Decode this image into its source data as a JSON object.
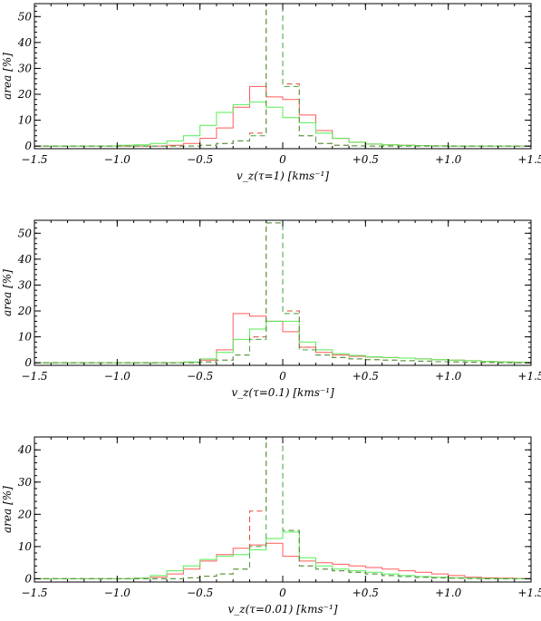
{
  "colors": {
    "red": "#ff5a5a",
    "green": "#55ee55",
    "redDash": "#dd4b3b",
    "greenDash": "#3fa33f"
  },
  "chart_data": [
    {
      "type": "line",
      "xlabel": "v_z(τ=1) [kms⁻¹]",
      "ylabel": "area [%]",
      "xlim": [
        -1.5,
        1.5
      ],
      "ylim": [
        -1,
        55
      ],
      "xticks": [
        -1.5,
        -1.0,
        -0.5,
        0,
        0.5,
        1.0,
        1.5
      ],
      "xtick_labels": [
        "−1.5",
        "−1.0",
        "−0.5",
        "0",
        "+0.5",
        "+1.0",
        "+1.5"
      ],
      "yticks": [
        0,
        10,
        20,
        30,
        40,
        50
      ],
      "ytick_labels": [
        "0",
        "10",
        "20",
        "30",
        "40",
        "50"
      ],
      "bin_edges": [
        -1.5,
        -1.4,
        -1.3,
        -1.2,
        -1.1,
        -1.0,
        -0.9,
        -0.8,
        -0.7,
        -0.6,
        -0.5,
        -0.4,
        -0.3,
        -0.2,
        -0.1,
        0.0,
        0.1,
        0.2,
        0.3,
        0.4,
        0.5,
        0.6,
        0.7,
        0.8,
        0.9,
        1.0,
        1.1,
        1.2,
        1.3,
        1.4,
        1.5
      ],
      "series": [
        {
          "color": "red",
          "style": "solid",
          "values": [
            0,
            0,
            0,
            0,
            0,
            0,
            0,
            0,
            0.3,
            1,
            3,
            7,
            15,
            23,
            19,
            18,
            12,
            6,
            3,
            1.5,
            0.8,
            0.5,
            0.3,
            0.2,
            0.1,
            0,
            0,
            0,
            0,
            0
          ]
        },
        {
          "color": "green",
          "style": "solid",
          "values": [
            0,
            0,
            0,
            0,
            0,
            0.3,
            0.5,
            1,
            2,
            4,
            8,
            13,
            16,
            17,
            15,
            11,
            9,
            5,
            3,
            1.5,
            0.8,
            0.5,
            0.3,
            0.2,
            0.1,
            0,
            0,
            0,
            0,
            0
          ]
        },
        {
          "color": "red",
          "style": "dashed",
          "values": [
            0,
            0,
            0,
            0,
            0,
            0,
            0,
            0,
            0,
            0,
            0.3,
            1,
            2,
            5,
            56,
            24,
            4,
            1,
            0.3,
            0.1,
            0,
            0,
            0,
            0,
            0,
            0,
            0,
            0,
            0,
            0
          ]
        },
        {
          "color": "green",
          "style": "dashed",
          "values": [
            0,
            0,
            0,
            0,
            0,
            0,
            0,
            0,
            0,
            0,
            0.3,
            1,
            2,
            4,
            56,
            23,
            4,
            1,
            0.3,
            0.1,
            0,
            0,
            0,
            0,
            0,
            0,
            0,
            0,
            0,
            0
          ]
        }
      ]
    },
    {
      "type": "line",
      "xlabel": "v_z(τ=0.1) [kms⁻¹]",
      "ylabel": "area [%]",
      "xlim": [
        -1.5,
        1.5
      ],
      "ylim": [
        -1,
        55
      ],
      "xticks": [
        -1.5,
        -1.0,
        -0.5,
        0,
        0.5,
        1.0,
        1.5
      ],
      "xtick_labels": [
        "−1.5",
        "−1.0",
        "−0.5",
        "0",
        "+0.5",
        "+1.0",
        "+1.5"
      ],
      "yticks": [
        0,
        10,
        20,
        30,
        40,
        50
      ],
      "ytick_labels": [
        "0",
        "10",
        "20",
        "30",
        "40",
        "50"
      ],
      "bin_edges": [
        -1.5,
        -1.4,
        -1.3,
        -1.2,
        -1.1,
        -1.0,
        -0.9,
        -0.8,
        -0.7,
        -0.6,
        -0.5,
        -0.4,
        -0.3,
        -0.2,
        -0.1,
        0.0,
        0.1,
        0.2,
        0.3,
        0.4,
        0.5,
        0.6,
        0.7,
        0.8,
        0.9,
        1.0,
        1.1,
        1.2,
        1.3,
        1.4,
        1.5
      ],
      "series": [
        {
          "color": "red",
          "style": "solid",
          "values": [
            0,
            0,
            0,
            0,
            0,
            0,
            0,
            0,
            0,
            0.2,
            1,
            5,
            19,
            18,
            16,
            12,
            6,
            4,
            3,
            2.5,
            2.2,
            2,
            1.8,
            1.5,
            1.2,
            1,
            0.8,
            0.5,
            0.3,
            0.2
          ]
        },
        {
          "color": "green",
          "style": "solid",
          "values": [
            0,
            0,
            0,
            0,
            0,
            0,
            0,
            0,
            0,
            0.3,
            1.5,
            4,
            9,
            13,
            16,
            16,
            8,
            5,
            3.5,
            2.8,
            2.3,
            2,
            1.8,
            1.5,
            1.2,
            1,
            0.8,
            0.5,
            0.3,
            0.2
          ]
        },
        {
          "color": "red",
          "style": "dashed",
          "values": [
            0,
            0,
            0,
            0,
            0,
            0,
            0,
            0,
            0,
            0,
            0.3,
            1,
            3,
            10,
            54,
            20,
            6,
            3,
            2,
            1.5,
            1.2,
            1,
            0.8,
            0.6,
            0.4,
            0.3,
            0.2,
            0.1,
            0,
            0
          ]
        },
        {
          "color": "green",
          "style": "dashed",
          "values": [
            0,
            0,
            0,
            0,
            0,
            0,
            0,
            0,
            0,
            0,
            0.3,
            1,
            3,
            9,
            54,
            19,
            5,
            3,
            2,
            1.5,
            1.2,
            1,
            0.8,
            0.6,
            0.4,
            0.3,
            0.2,
            0.1,
            0,
            0
          ]
        }
      ]
    },
    {
      "type": "line",
      "xlabel": "v_z(τ=0.01) [kms⁻¹]",
      "ylabel": "area [%]",
      "xlim": [
        -1.5,
        1.5
      ],
      "ylim": [
        -1,
        44
      ],
      "xticks": [
        -1.5,
        -1.0,
        -0.5,
        0,
        0.5,
        1.0,
        1.5
      ],
      "xtick_labels": [
        "−1.5",
        "−1.0",
        "−0.5",
        "0",
        "+0.5",
        "+1.0",
        "+1.5"
      ],
      "yticks": [
        0,
        10,
        20,
        30,
        40
      ],
      "ytick_labels": [
        "0",
        "10",
        "20",
        "30",
        "40"
      ],
      "bin_edges": [
        -1.5,
        -1.4,
        -1.3,
        -1.2,
        -1.1,
        -1.0,
        -0.9,
        -0.8,
        -0.7,
        -0.6,
        -0.5,
        -0.4,
        -0.3,
        -0.2,
        -0.1,
        0.0,
        0.1,
        0.2,
        0.3,
        0.4,
        0.5,
        0.6,
        0.7,
        0.8,
        0.9,
        1.0,
        1.1,
        1.2,
        1.3,
        1.4,
        1.5
      ],
      "series": [
        {
          "color": "red",
          "style": "solid",
          "values": [
            0,
            0,
            0,
            0,
            0,
            0,
            0.2,
            0.5,
            1.5,
            3,
            5.5,
            7.5,
            9.5,
            10.5,
            11,
            7,
            5.5,
            5,
            4.5,
            4,
            3.5,
            3,
            2.5,
            2,
            1.5,
            1,
            0.5,
            0.3,
            0.2,
            0.1
          ]
        },
        {
          "color": "green",
          "style": "solid",
          "values": [
            0,
            0,
            0,
            0,
            0,
            0,
            0.2,
            1,
            2.5,
            4,
            6,
            7,
            7.5,
            9,
            12.5,
            14.5,
            6.5,
            4,
            3,
            2.5,
            2,
            1.5,
            1,
            0.7,
            0.5,
            0.3,
            0.2,
            0.1,
            0,
            0
          ]
        },
        {
          "color": "red",
          "style": "dashed",
          "values": [
            0,
            0,
            0,
            0,
            0,
            0,
            0,
            0,
            0,
            0.3,
            0.8,
            1.5,
            3,
            21,
            44,
            15,
            4,
            3,
            2.5,
            2,
            1.5,
            1,
            0.7,
            0.5,
            0.3,
            0.2,
            0.1,
            0,
            0,
            0
          ]
        },
        {
          "color": "green",
          "style": "dashed",
          "values": [
            0,
            0,
            0,
            0,
            0,
            0,
            0,
            0,
            0,
            0.3,
            0.8,
            1.5,
            3,
            10,
            44,
            15,
            4,
            3,
            2.5,
            2,
            1.5,
            1,
            0.7,
            0.5,
            0.3,
            0.2,
            0.1,
            0,
            0,
            0
          ]
        }
      ]
    }
  ]
}
